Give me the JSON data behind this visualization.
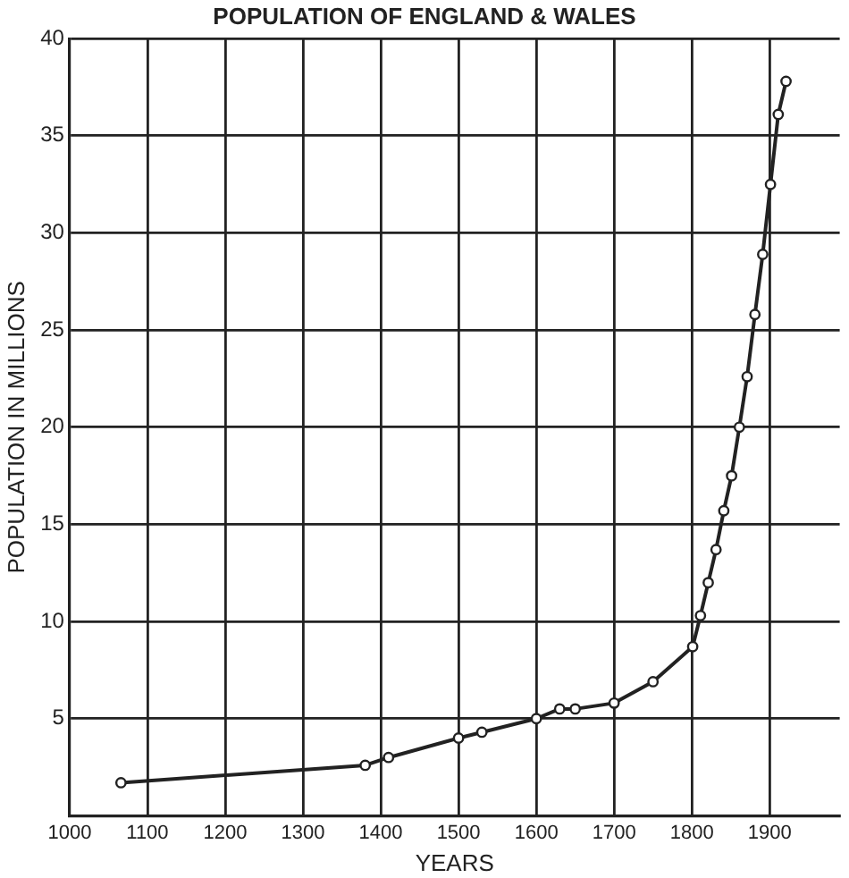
{
  "chart_data": {
    "type": "line",
    "title": "POPULATION OF ENGLAND & WALES",
    "xlabel": "YEARS",
    "ylabel": "POPULATION IN MILLIONS",
    "x": [
      1066,
      1380,
      1410,
      1500,
      1530,
      1600,
      1630,
      1650,
      1700,
      1750,
      1801,
      1811,
      1821,
      1831,
      1841,
      1851,
      1861,
      1871,
      1881,
      1891,
      1901,
      1911,
      1921
    ],
    "series": [
      {
        "color": "#222222",
        "values": [
          1.7,
          2.6,
          3.0,
          4.0,
          4.3,
          5.0,
          5.5,
          5.5,
          5.8,
          6.9,
          8.7,
          10.3,
          12.0,
          13.7,
          15.7,
          17.5,
          20.0,
          22.6,
          25.8,
          28.9,
          32.5,
          36.1,
          37.8
        ]
      }
    ],
    "xlim": [
      1000,
      1990
    ],
    "xticks": [
      1000,
      1100,
      1200,
      1300,
      1400,
      1500,
      1600,
      1700,
      1800,
      1900
    ],
    "ylim": [
      0,
      40
    ],
    "yticks": [
      5,
      10,
      15,
      20,
      25,
      30,
      35,
      40
    ],
    "grid": true,
    "legend": false,
    "marker": "circle",
    "line_style": "solid"
  }
}
